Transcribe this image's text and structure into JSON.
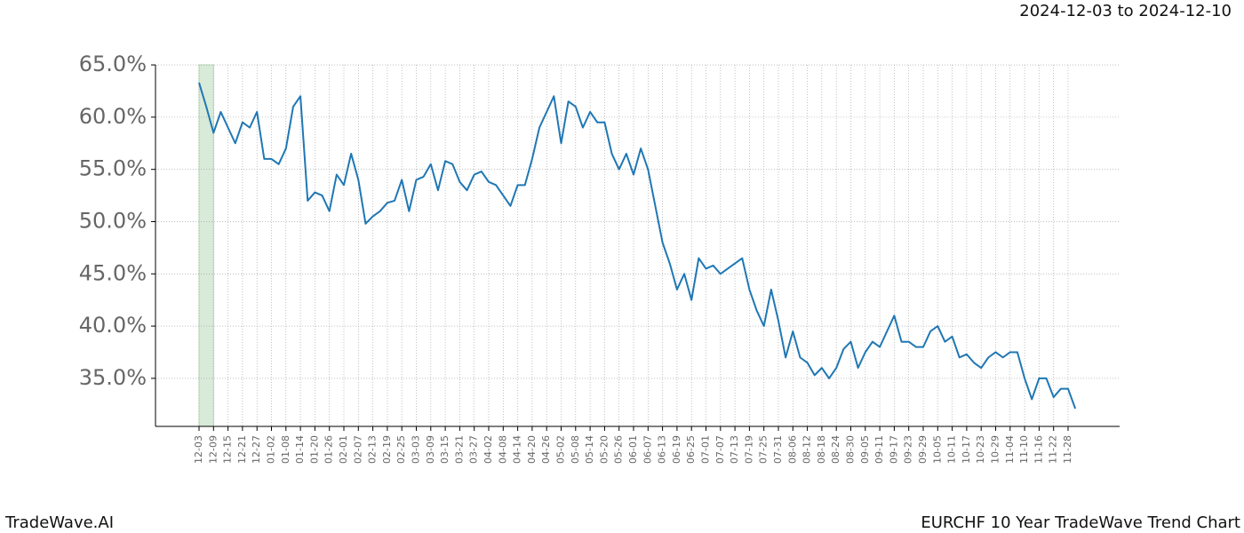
{
  "chart_data": {
    "type": "line",
    "date_range": "2024-12-03 to 2024-12-10",
    "brand": "TradeWave.AI",
    "caption": "EURCHF 10 Year TradeWave Trend Chart",
    "categories": [
      "12-03",
      null,
      "12-09",
      null,
      "12-15",
      null,
      "12-21",
      null,
      "12-27",
      null,
      "01-02",
      null,
      "01-08",
      null,
      "01-14",
      null,
      "01-20",
      null,
      "01-26",
      null,
      "02-01",
      null,
      "02-07",
      null,
      "02-13",
      null,
      "02-19",
      null,
      "02-25",
      null,
      "03-03",
      null,
      "03-09",
      null,
      "03-15",
      null,
      "03-21",
      null,
      "03-27",
      null,
      "04-02",
      null,
      "04-08",
      null,
      "04-14",
      null,
      "04-20",
      null,
      "04-26",
      null,
      "05-02",
      null,
      "05-08",
      null,
      "05-14",
      null,
      "05-20",
      null,
      "05-26",
      null,
      "06-01",
      null,
      "06-07",
      null,
      "06-13",
      null,
      "06-19",
      null,
      "06-25",
      null,
      "07-01",
      null,
      "07-07",
      null,
      "07-13",
      null,
      "07-19",
      null,
      "07-25",
      null,
      "07-31",
      null,
      "08-06",
      null,
      "08-12",
      null,
      "08-18",
      null,
      "08-24",
      null,
      "08-30",
      null,
      "09-05",
      null,
      "09-11",
      null,
      "09-17",
      null,
      "09-23",
      null,
      "09-29",
      null,
      "10-05",
      null,
      "10-11",
      null,
      "10-17",
      null,
      "10-23",
      null,
      "10-29",
      null,
      "11-04",
      null,
      "11-10",
      null,
      "11-16",
      null,
      "11-22",
      null,
      "11-28",
      null
    ],
    "series": [
      {
        "color": "#1f77b4",
        "values": [
          63.3,
          61.0,
          58.5,
          60.5,
          59.0,
          57.5,
          59.5,
          59.0,
          60.5,
          56.0,
          56.0,
          55.5,
          57.0,
          61.0,
          62.0,
          52.0,
          52.8,
          52.5,
          51.0,
          54.5,
          53.5,
          56.5,
          54.0,
          49.8,
          50.5,
          51.0,
          51.8,
          52.0,
          54.0,
          51.0,
          54.0,
          54.3,
          55.5,
          53.0,
          55.8,
          55.5,
          53.8,
          53.0,
          54.5,
          54.8,
          53.8,
          53.5,
          52.5,
          51.5,
          53.5,
          53.5,
          56.0,
          59.0,
          60.5,
          62.0,
          57.5,
          61.5,
          61.0,
          59.0,
          60.5,
          59.5,
          59.5,
          56.5,
          55.0,
          56.5,
          54.5,
          57.0,
          55.0,
          51.5,
          48.0,
          46.0,
          43.5,
          45.0,
          42.5,
          46.5,
          45.5,
          45.8,
          45.0,
          45.5,
          46.0,
          46.5,
          43.5,
          41.5,
          40.0,
          43.5,
          40.5,
          37.0,
          39.5,
          37.0,
          36.5,
          35.3,
          36.0,
          35.0,
          36.0,
          37.8,
          38.5,
          36.0,
          37.5,
          38.5,
          38.0,
          39.5,
          41.0,
          38.5,
          38.5,
          38.0,
          38.0,
          39.5,
          40.0,
          38.5,
          39.0,
          37.0,
          37.3,
          36.5,
          36.0,
          37.0,
          37.5,
          37.0,
          37.5,
          37.5,
          35.0,
          33.0,
          35.0,
          35.0,
          33.2,
          34.0,
          34.0,
          32.1
        ]
      }
    ],
    "highlight_range": [
      "12-03",
      "12-09"
    ],
    "highlight_color": "#d8ead8",
    "ylim": [
      30.4,
      65.6
    ],
    "yticks": [
      {
        "value": 35,
        "label": "35.0%"
      },
      {
        "value": 40,
        "label": "40.0%"
      },
      {
        "value": 45,
        "label": "45.0%"
      },
      {
        "value": 50,
        "label": "50.0%"
      },
      {
        "value": 55,
        "label": "55.0%"
      },
      {
        "value": 60,
        "label": "60.0%"
      },
      {
        "value": 65,
        "label": "65.0%"
      }
    ],
    "grid": true
  }
}
